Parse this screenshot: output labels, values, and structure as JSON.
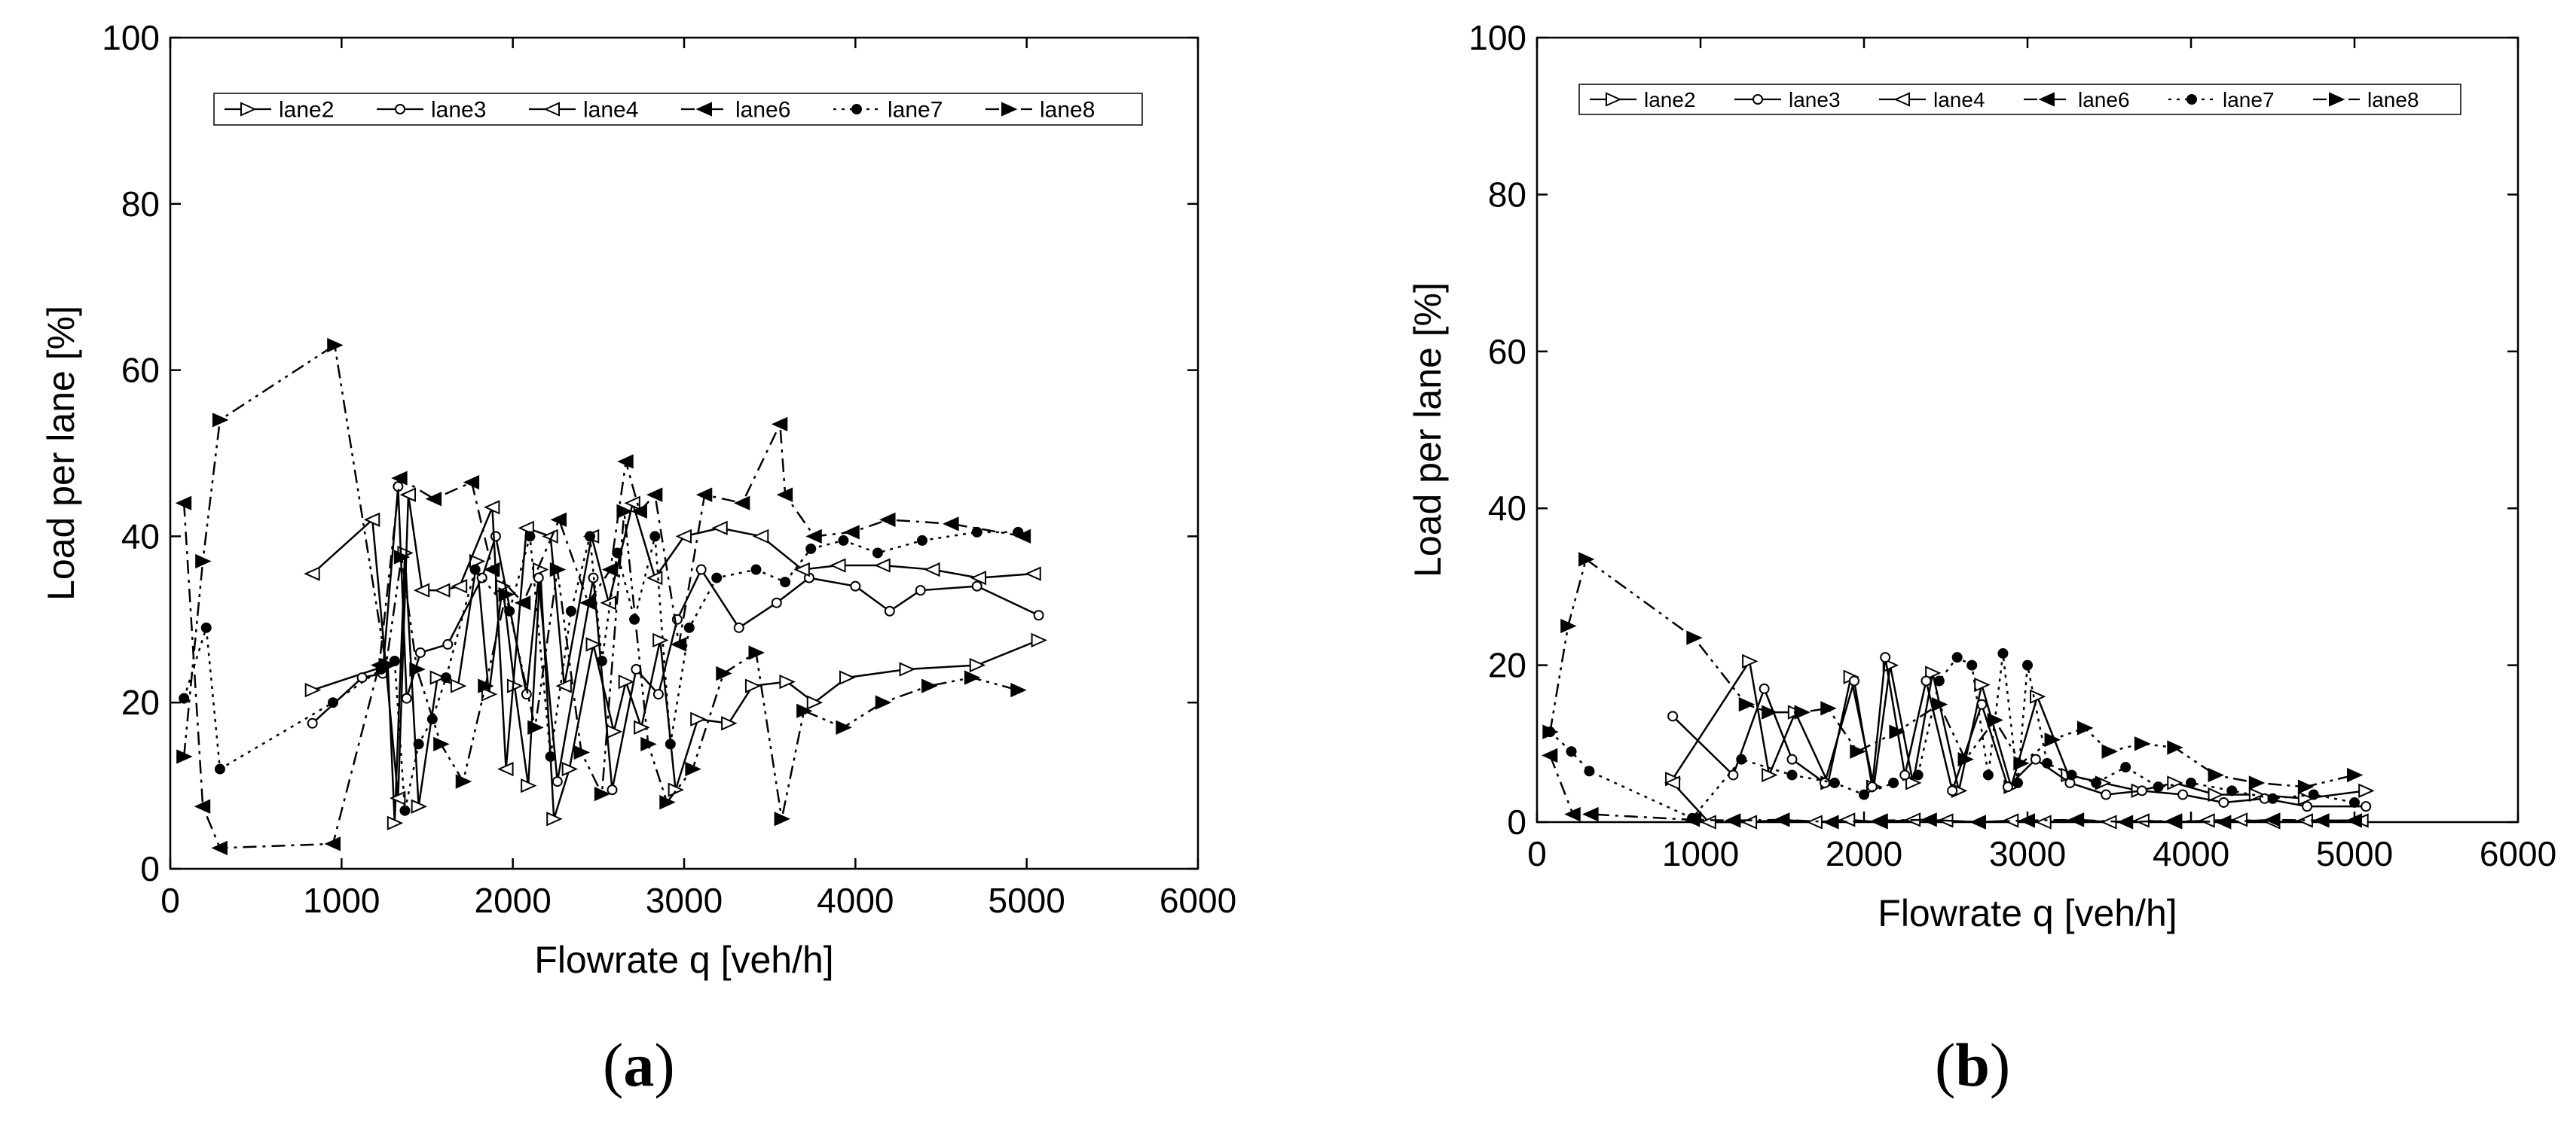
{
  "chart_data": [
    {
      "type": "line",
      "panel": "(a)",
      "panel_letter": "a",
      "title": "",
      "xlabel": "Flowrate q [veh/h]",
      "ylabel": "Load per lane [%]",
      "xlim": [
        0,
        6000
      ],
      "ylim": [
        0,
        100
      ],
      "xticks": [
        0,
        1000,
        2000,
        3000,
        4000,
        5000,
        6000
      ],
      "yticks": [
        0,
        20,
        40,
        60,
        80,
        100
      ],
      "grid": false,
      "legend": "top, horizontal",
      "series": [
        {
          "name": "lane2",
          "marker": "tri-right-open",
          "dash": "solid",
          "x": [
            830,
            1270,
            1310,
            1370,
            1450,
            1560,
            1680,
            1790,
            1860,
            1940,
            2010,
            2090,
            2160,
            2240,
            2330,
            2470,
            2590,
            2660,
            2750,
            2860,
            2950,
            3080,
            3260,
            3400,
            3600,
            3760,
            3950,
            4300,
            4710,
            5070
          ],
          "y": [
            21.5,
            24.5,
            5.5,
            38,
            7.5,
            23,
            22,
            37,
            21,
            34,
            22,
            10,
            36,
            6,
            12,
            27,
            16.5,
            22.5,
            17,
            27.5,
            9.5,
            18,
            17.5,
            22,
            22.5,
            20,
            23,
            24,
            24.5,
            27.5
          ]
        },
        {
          "name": "lane3",
          "marker": "circle-open",
          "dash": "solid",
          "x": [
            830,
            1120,
            1240,
            1330,
            1380,
            1460,
            1620,
            1820,
            1900,
            2080,
            2150,
            2260,
            2470,
            2580,
            2720,
            2850,
            2960,
            3100,
            3320,
            3540,
            3730,
            4000,
            4200,
            4380,
            4710,
            5070
          ],
          "y": [
            17.5,
            23,
            23.5,
            46,
            20.5,
            26,
            27,
            35,
            40,
            21,
            35,
            10.5,
            35,
            9.5,
            24,
            21,
            30,
            36,
            29,
            32,
            35,
            34,
            31,
            33.5,
            34,
            30.5
          ]
        },
        {
          "name": "lane4",
          "marker": "tri-left-open",
          "dash": "solid",
          "x": [
            830,
            1180,
            1330,
            1390,
            1470,
            1590,
            1690,
            1880,
            1960,
            2080,
            2220,
            2300,
            2460,
            2560,
            2700,
            2830,
            3000,
            3210,
            3450,
            3690,
            3900,
            4160,
            4450,
            4720,
            5040
          ],
          "y": [
            35.5,
            42,
            8.5,
            45,
            33.5,
            33.5,
            34,
            43.5,
            12,
            41,
            40,
            22,
            40,
            32,
            44,
            35,
            40,
            41,
            40,
            36,
            36.5,
            36.5,
            36,
            35,
            35.5
          ]
        },
        {
          "name": "lane6",
          "marker": "tri-left-filled",
          "dash": "dashdot",
          "x": [
            80,
            190,
            290,
            950,
            1220,
            1340,
            1540,
            1760,
            1880,
            2060,
            2270,
            2440,
            2570,
            2660,
            2740,
            2830,
            2970,
            3120,
            3340,
            3560,
            3590,
            3760,
            3980,
            4190,
            4560,
            4980
          ],
          "y": [
            44,
            7.5,
            2.5,
            3,
            24.5,
            47,
            44.5,
            46.5,
            36,
            32,
            42,
            32,
            36,
            49,
            43,
            45,
            27,
            45,
            44,
            53.5,
            45,
            40,
            40.5,
            42,
            41.5,
            40
          ]
        },
        {
          "name": "lane7",
          "marker": "circle-filled",
          "dash": "dot",
          "x": [
            80,
            210,
            290,
            950,
            1230,
            1310,
            1370,
            1450,
            1530,
            1610,
            1780,
            1980,
            2100,
            2220,
            2340,
            2450,
            2520,
            2610,
            2710,
            2830,
            2920,
            3030,
            3190,
            3420,
            3590,
            3740,
            3930,
            4130,
            4390,
            4710,
            4950
          ],
          "y": [
            20.5,
            29,
            12,
            20,
            24,
            25,
            7,
            15,
            18,
            23,
            36,
            31,
            40,
            13.5,
            31,
            40,
            25,
            38,
            30,
            40,
            15,
            29,
            35,
            36,
            34.5,
            38.5,
            39.5,
            38,
            39.5,
            40.5,
            40.5
          ]
        },
        {
          "name": "lane8",
          "marker": "tri-right-filled",
          "dash": "dashdotdot",
          "x": [
            80,
            190,
            290,
            960,
            1260,
            1350,
            1440,
            1580,
            1710,
            1840,
            1960,
            2130,
            2260,
            2400,
            2520,
            2650,
            2790,
            2900,
            3050,
            3230,
            3420,
            3570,
            3700,
            3930,
            4160,
            4430,
            4680,
            4950
          ],
          "y": [
            13.5,
            37,
            54,
            63,
            24.5,
            37.5,
            24,
            15,
            10.5,
            22,
            33,
            17,
            36,
            14,
            9,
            43,
            15,
            8,
            12,
            23.5,
            26,
            6,
            19,
            17,
            20,
            22,
            23,
            21.5
          ]
        }
      ]
    },
    {
      "type": "line",
      "panel": "(b)",
      "panel_letter": "b",
      "title": "",
      "xlabel": "Flowrate q [veh/h]",
      "ylabel": "Load per lane [%]",
      "xlim": [
        0,
        6000
      ],
      "ylim": [
        0,
        100
      ],
      "xticks": [
        0,
        1000,
        2000,
        3000,
        4000,
        5000,
        6000
      ],
      "yticks": [
        0,
        20,
        40,
        60,
        80,
        100
      ],
      "grid": false,
      "legend": "top, horizontal",
      "series": [
        {
          "name": "lane2",
          "marker": "tri-right-open",
          "dash": "solid",
          "x": [
            830,
            1300,
            1420,
            1580,
            1780,
            1920,
            2060,
            2160,
            2300,
            2420,
            2580,
            2720,
            2900,
            3060,
            3250,
            3460,
            3680,
            3900,
            4150,
            4400,
            4700,
            5070
          ],
          "y": [
            5.5,
            20.5,
            6,
            14,
            5,
            18.5,
            4.5,
            20,
            5,
            19,
            4,
            17.5,
            4.5,
            16,
            6,
            5,
            4,
            5,
            3.5,
            3.5,
            3,
            4
          ]
        },
        {
          "name": "lane3",
          "marker": "circle-open",
          "dash": "solid",
          "x": [
            830,
            1200,
            1390,
            1560,
            1760,
            1940,
            2050,
            2130,
            2250,
            2380,
            2540,
            2720,
            2880,
            3050,
            3260,
            3480,
            3700,
            3950,
            4200,
            4450,
            4710,
            5070
          ],
          "y": [
            13.5,
            6,
            17,
            8,
            5,
            18,
            4.5,
            21,
            6,
            18,
            4,
            15,
            4.5,
            8,
            5,
            3.5,
            4,
            3.5,
            2.5,
            3,
            2,
            2
          ]
        },
        {
          "name": "lane4",
          "marker": "tri-left-open",
          "dash": "solid",
          "x": [
            830,
            1050,
            1300,
            1500,
            1700,
            1900,
            2100,
            2300,
            2500,
            2700,
            2900,
            3100,
            3300,
            3500,
            3700,
            3900,
            4100,
            4300,
            4500,
            4700,
            5040
          ],
          "y": [
            5,
            0,
            0,
            0.3,
            0,
            0.3,
            0,
            0.3,
            0.2,
            0,
            0.2,
            0,
            0.3,
            0,
            0.2,
            0,
            0.2,
            0.3,
            0,
            0.2,
            0.2
          ]
        },
        {
          "name": "lane6",
          "marker": "tri-left-filled",
          "dash": "dashdot",
          "x": [
            80,
            220,
            330,
            950,
            1200,
            1500,
            1800,
            2100,
            2400,
            2700,
            3000,
            3300,
            3600,
            3900,
            4200,
            4500,
            4800,
            5000
          ],
          "y": [
            8.5,
            1,
            1,
            0.3,
            0.2,
            0.3,
            0,
            0.2,
            0.3,
            0,
            0.2,
            0.3,
            0,
            0.2,
            0,
            0.3,
            0.2,
            0.2
          ]
        },
        {
          "name": "lane7",
          "marker": "circle-filled",
          "dash": "dot",
          "x": [
            80,
            210,
            320,
            950,
            1250,
            1560,
            1820,
            2000,
            2180,
            2330,
            2460,
            2570,
            2660,
            2760,
            2850,
            2940,
            3000,
            3120,
            3270,
            3420,
            3600,
            3800,
            4000,
            4250,
            4500,
            4750,
            5000
          ],
          "y": [
            11.5,
            9,
            6.5,
            0.5,
            8,
            6,
            5,
            3.5,
            5,
            6,
            18,
            21,
            20,
            6,
            21.5,
            5,
            20,
            7.5,
            6,
            5,
            7,
            4.5,
            5,
            4,
            3,
            3.5,
            2.5
          ]
        },
        {
          "name": "lane8",
          "marker": "tri-right-filled",
          "dash": "dashdotdot",
          "x": [
            80,
            190,
            300,
            960,
            1280,
            1420,
            1620,
            1780,
            1960,
            2200,
            2460,
            2620,
            2800,
            2960,
            3150,
            3350,
            3500,
            3700,
            3900,
            4150,
            4400,
            4700,
            5000
          ],
          "y": [
            11.5,
            25,
            33.5,
            23.5,
            15,
            14,
            14,
            14.5,
            9,
            11.5,
            15,
            8,
            13,
            7.5,
            10.5,
            12,
            9,
            10,
            9.5,
            6,
            5,
            4.5,
            6
          ]
        }
      ]
    }
  ]
}
